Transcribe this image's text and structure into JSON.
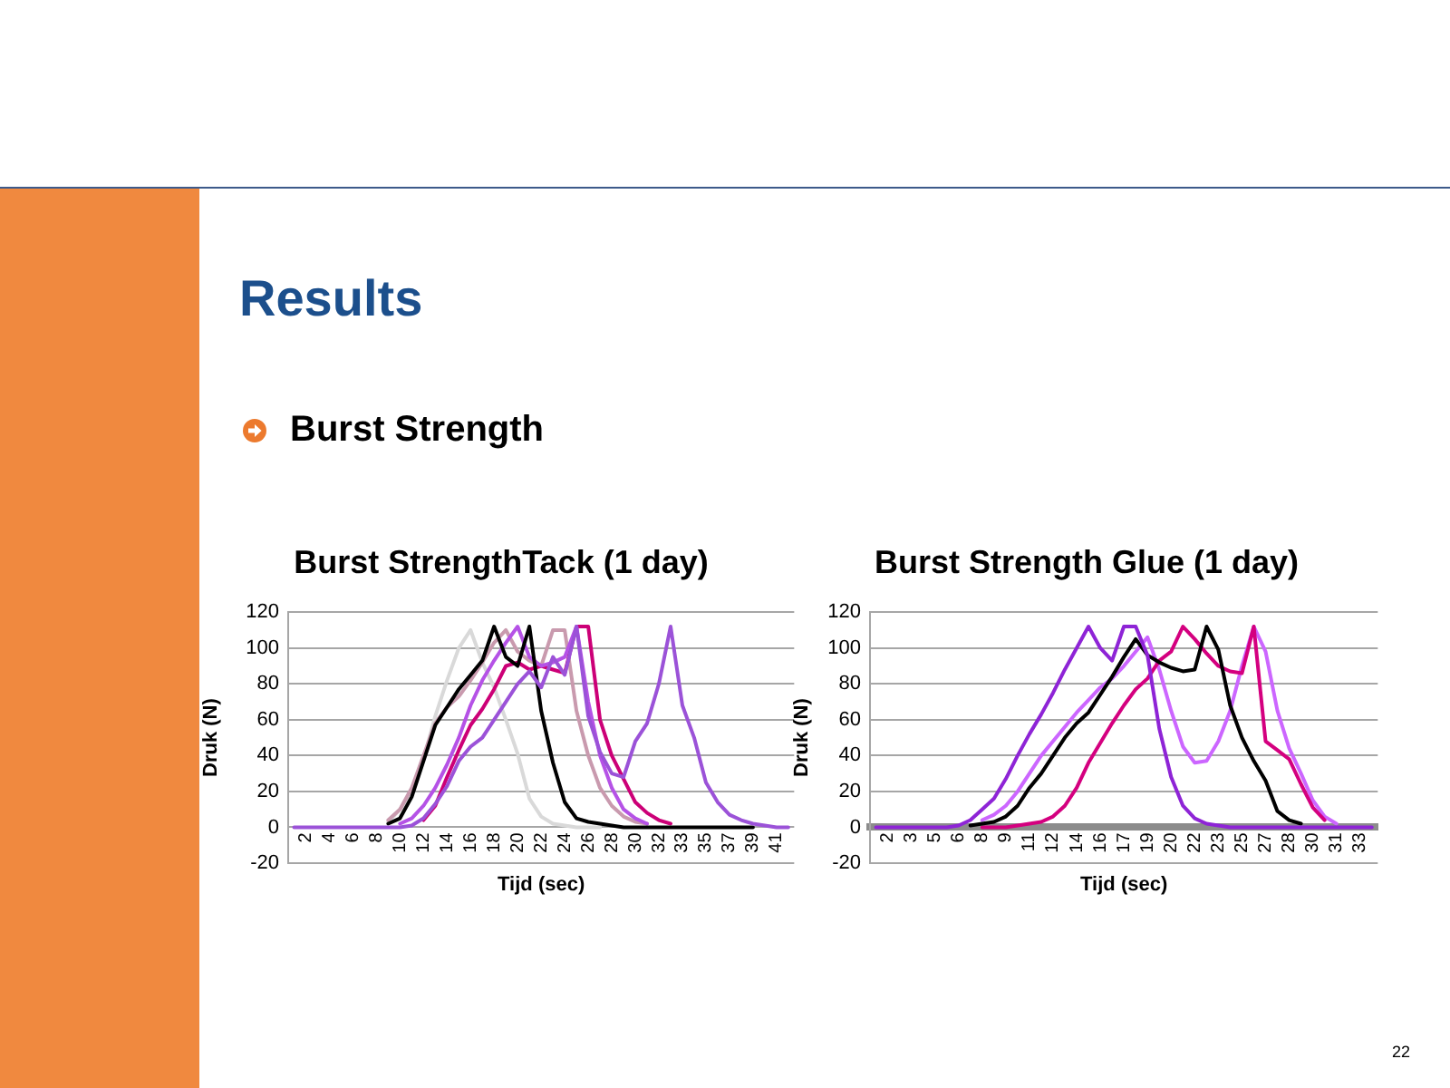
{
  "chart_data": [
    {
      "type": "line",
      "title": "Burst StrengthTack (1 day)",
      "xlabel": "Tijd (sec)",
      "ylabel": "Druk (N)",
      "annotations": [
        "Results",
        "Burst Strength"
      ],
      "categories": [
        null,
        "2",
        null,
        "4",
        null,
        "6",
        null,
        "8",
        null,
        "10",
        null,
        "12",
        null,
        "14",
        null,
        "16",
        null,
        "18",
        null,
        "20",
        null,
        "22",
        null,
        "24",
        null,
        "26",
        null,
        "28",
        null,
        "30",
        null,
        "32",
        null,
        "33",
        null,
        "35",
        null,
        "37",
        null,
        "39",
        null,
        "41",
        null
      ],
      "series": [
        {
          "color": "#d9d9d9",
          "values": [
            null,
            null,
            null,
            null,
            null,
            null,
            null,
            null,
            3,
            10,
            20,
            38,
            62,
            82,
            100,
            110,
            92,
            78,
            60,
            41,
            16,
            6,
            2,
            1,
            0,
            0,
            0,
            null,
            null,
            null,
            null,
            null,
            null,
            null,
            null,
            null,
            null,
            null,
            null,
            null,
            null,
            null,
            null
          ]
        },
        {
          "color": "#c99aae",
          "values": [
            null,
            null,
            null,
            null,
            null,
            null,
            null,
            null,
            4,
            10,
            22,
            40,
            58,
            67,
            73,
            82,
            92,
            103,
            110,
            98,
            93,
            90,
            110,
            110,
            65,
            40,
            22,
            12,
            6,
            3,
            2,
            null,
            null,
            null,
            null,
            null,
            null,
            null,
            null,
            null,
            null,
            null,
            null
          ]
        },
        {
          "color": "#cc0077",
          "values": [
            null,
            null,
            null,
            null,
            null,
            null,
            null,
            null,
            null,
            null,
            null,
            4,
            12,
            28,
            43,
            57,
            66,
            77,
            90,
            92,
            88,
            90,
            88,
            86,
            112,
            112,
            60,
            40,
            27,
            14,
            8,
            4,
            2,
            null,
            null,
            null,
            null,
            null,
            null,
            null,
            null,
            null,
            null
          ]
        },
        {
          "color": "#b552e6",
          "values": [
            null,
            null,
            null,
            null,
            null,
            null,
            null,
            null,
            null,
            2,
            5,
            12,
            22,
            35,
            50,
            68,
            82,
            93,
            103,
            112,
            95,
            90,
            92,
            95,
            112,
            70,
            40,
            22,
            10,
            5,
            2,
            null,
            null,
            null,
            null,
            null,
            null,
            null,
            null,
            null,
            null,
            null,
            null
          ]
        },
        {
          "color": "#000000",
          "values": [
            null,
            null,
            null,
            null,
            null,
            null,
            null,
            null,
            2,
            5,
            17,
            37,
            57,
            67,
            77,
            85,
            93,
            112,
            95,
            90,
            112,
            65,
            36,
            14,
            5,
            3,
            2,
            1,
            0,
            0,
            0,
            0,
            0,
            0,
            0,
            0,
            0,
            0,
            0,
            0,
            null,
            null,
            null
          ]
        },
        {
          "color": "#9b52d8",
          "values": [
            0,
            0,
            0,
            0,
            0,
            0,
            0,
            0,
            0,
            0,
            1,
            5,
            13,
            23,
            37,
            45,
            50,
            60,
            70,
            80,
            87,
            78,
            95,
            85,
            112,
            62,
            42,
            30,
            28,
            48,
            58,
            80,
            112,
            68,
            50,
            25,
            14,
            7,
            4,
            2,
            1,
            0,
            0
          ]
        }
      ],
      "ylim": [
        -20,
        120
      ],
      "yticks": [
        -20,
        0,
        20,
        40,
        60,
        80,
        100,
        120
      ],
      "grid": "y",
      "line_style": "solid"
    },
    {
      "type": "line",
      "title": "Burst Strength Glue (1 day)",
      "xlabel": "Tijd (sec)",
      "ylabel": "Druk (N)",
      "annotations": [
        "22"
      ],
      "categories": [
        null,
        "2",
        null,
        "3",
        null,
        "5",
        null,
        "6",
        null,
        "8",
        null,
        "9",
        null,
        "11",
        null,
        "12",
        null,
        "14",
        null,
        "16",
        null,
        "17",
        null,
        "19",
        null,
        "20",
        null,
        "22",
        null,
        "23",
        null,
        "25",
        null,
        "27",
        null,
        "28",
        null,
        "30",
        null,
        "31",
        null,
        "33",
        null
      ],
      "series": [
        {
          "color": "#cc66ff",
          "values": [
            null,
            null,
            null,
            null,
            null,
            null,
            null,
            null,
            null,
            4,
            7,
            12,
            20,
            30,
            40,
            48,
            56,
            64,
            71,
            78,
            83,
            90,
            98,
            106,
            88,
            65,
            45,
            36,
            37,
            48,
            65,
            90,
            112,
            98,
            65,
            44,
            30,
            15,
            6,
            2,
            null,
            null,
            null
          ]
        },
        {
          "color": "#d4007f",
          "values": [
            null,
            null,
            null,
            null,
            null,
            null,
            null,
            null,
            null,
            0,
            0,
            0,
            1,
            2,
            3,
            6,
            12,
            22,
            36,
            47,
            58,
            68,
            77,
            83,
            93,
            98,
            112,
            105,
            97,
            90,
            87,
            86,
            112,
            48,
            43,
            38,
            24,
            11,
            4,
            null,
            null,
            null,
            null
          ]
        },
        {
          "color": "#000000",
          "values": [
            null,
            null,
            null,
            null,
            null,
            null,
            null,
            null,
            1,
            2,
            3,
            6,
            12,
            22,
            30,
            40,
            50,
            58,
            64,
            74,
            84,
            95,
            105,
            96,
            92,
            89,
            87,
            88,
            112,
            99,
            68,
            50,
            37,
            26,
            9,
            4,
            2,
            null,
            null,
            null,
            null,
            null,
            null
          ]
        },
        {
          "color": "#8e24d6",
          "values": [
            0,
            0,
            0,
            0,
            0,
            0,
            0,
            1,
            4,
            10,
            16,
            27,
            40,
            52,
            63,
            75,
            88,
            100,
            112,
            100,
            93,
            112,
            112,
            96,
            55,
            28,
            12,
            5,
            2,
            1,
            0,
            0,
            0,
            0,
            0,
            0,
            0,
            0,
            0,
            0,
            0,
            0,
            0
          ]
        }
      ],
      "ylim": [
        -20,
        120
      ],
      "yticks": [
        -20,
        0,
        20,
        40,
        60,
        80,
        100,
        120
      ],
      "grid": "y",
      "line_style": "solid"
    }
  ]
}
